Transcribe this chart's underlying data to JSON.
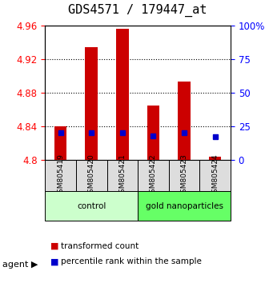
{
  "title": "GDS4571 / 179447_at",
  "samples": [
    "GSM805419",
    "GSM805420",
    "GSM805421",
    "GSM805422",
    "GSM805423",
    "GSM805424"
  ],
  "red_values": [
    4.84,
    4.934,
    4.956,
    4.865,
    4.893,
    4.804
  ],
  "blue_values_pct": [
    20,
    20,
    20,
    18,
    20,
    17
  ],
  "ylim": [
    4.8,
    4.96
  ],
  "yticks_left": [
    4.8,
    4.84,
    4.88,
    4.92,
    4.96
  ],
  "yticks_right": [
    0,
    25,
    50,
    75,
    100
  ],
  "ytick_labels_right": [
    "0",
    "25",
    "50",
    "75",
    "100%"
  ],
  "bar_bottom": 4.8,
  "blue_pct_to_value_scale": [
    4.8,
    4.96
  ],
  "groups": [
    {
      "label": "control",
      "indices": [
        0,
        1,
        2
      ],
      "color": "#ccffcc"
    },
    {
      "label": "gold nanoparticles",
      "indices": [
        3,
        4,
        5
      ],
      "color": "#66ff66"
    }
  ],
  "group_row_label": "agent",
  "red_color": "#cc0000",
  "blue_color": "#0000cc",
  "bar_width": 0.4,
  "grid_color": "black",
  "background_color": "white",
  "plot_bg": "white",
  "xlabel_bg": "#dddddd",
  "title_fontsize": 11,
  "tick_fontsize": 8.5,
  "legend_fontsize": 7.5
}
